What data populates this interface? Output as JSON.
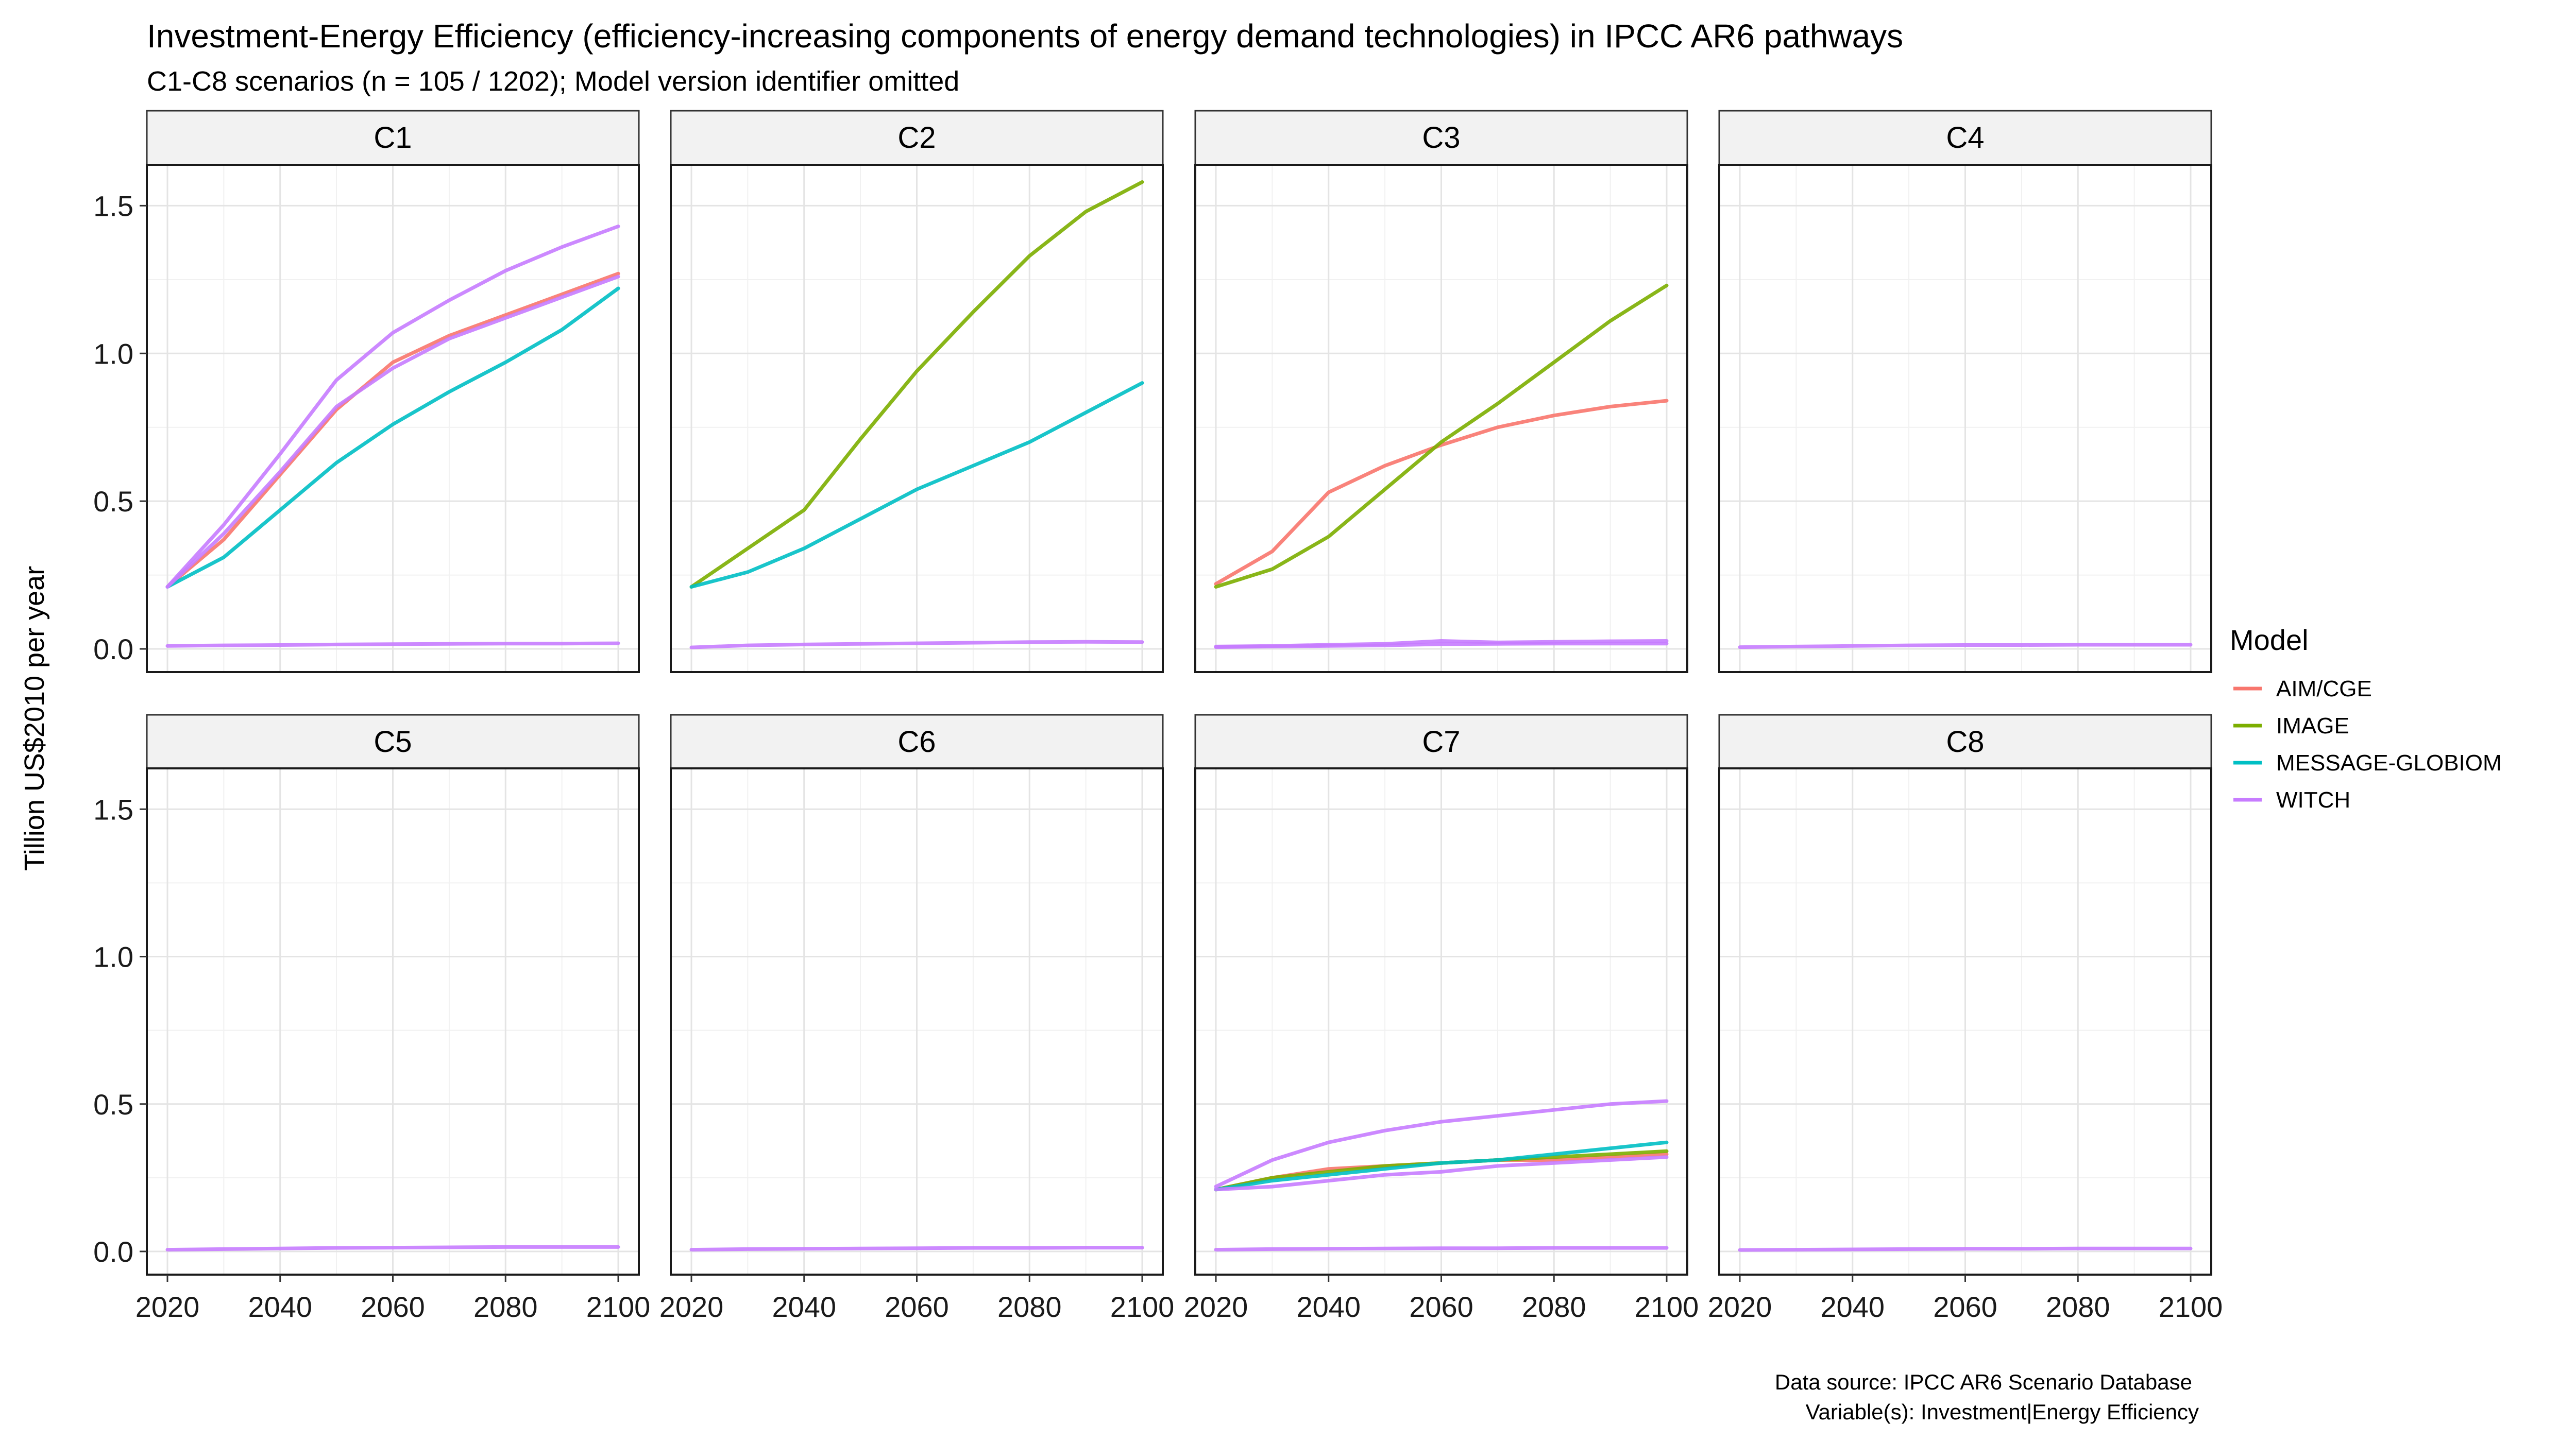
{
  "header": {
    "title": "Investment-Energy Efficiency (efficiency-increasing components of energy demand technologies) in IPCC AR6 pathways",
    "subtitle": "C1-C8 scenarios (n = 105 / 1202); Model version identifier omitted"
  },
  "caption": {
    "line1": "Data source: IPCC AR6 Scenario Database",
    "line2": "Variable(s): Investment|Energy Efficiency"
  },
  "colors": {
    "AIM/CGE": "#F8766D",
    "IMAGE": "#7CAE00",
    "MESSAGE-GLOBIOM": "#00BFC4",
    "WITCH": "#C77CFF"
  },
  "chart_data": {
    "type": "line",
    "ylabel": "Tillion US$2010 per year",
    "xlim": [
      2020,
      2100
    ],
    "ylim": [
      0,
      1.6
    ],
    "x_ticks": [
      "2020",
      "2040",
      "2060",
      "2080",
      "2100"
    ],
    "y_ticks": [
      "0.0",
      "0.5",
      "1.0",
      "1.5"
    ],
    "grid": true,
    "legend": {
      "title": "Model",
      "position": "right",
      "entries": [
        "AIM/CGE",
        "IMAGE",
        "MESSAGE-GLOBIOM",
        "WITCH"
      ]
    },
    "x": [
      2020,
      2030,
      2040,
      2050,
      2060,
      2070,
      2080,
      2090,
      2100
    ],
    "facets": [
      {
        "label": "C1",
        "series": [
          {
            "model": "AIM/CGE",
            "values": [
              0.21,
              0.37,
              0.59,
              0.81,
              0.97,
              1.06,
              1.13,
              1.2,
              1.27
            ]
          },
          {
            "model": "MESSAGE-GLOBIOM",
            "values": [
              0.21,
              0.31,
              0.47,
              0.63,
              0.76,
              0.87,
              0.97,
              1.08,
              1.22
            ]
          },
          {
            "model": "WITCH",
            "values": [
              0.21,
              0.42,
              0.66,
              0.91,
              1.07,
              1.18,
              1.28,
              1.36,
              1.43
            ]
          },
          {
            "model": "WITCH",
            "values": [
              0.21,
              0.39,
              0.6,
              0.82,
              0.95,
              1.05,
              1.12,
              1.19,
              1.26
            ]
          },
          {
            "model": "WITCH",
            "values": [
              0.01,
              0.012,
              0.013,
              0.015,
              0.016,
              0.017,
              0.018,
              0.018,
              0.019
            ]
          }
        ]
      },
      {
        "label": "C2",
        "series": [
          {
            "model": "IMAGE",
            "values": [
              0.21,
              0.34,
              0.47,
              0.71,
              0.94,
              1.14,
              1.33,
              1.48,
              1.58
            ]
          },
          {
            "model": "MESSAGE-GLOBIOM",
            "values": [
              0.21,
              0.26,
              0.34,
              0.44,
              0.54,
              0.62,
              0.7,
              0.8,
              0.9
            ]
          },
          {
            "model": "WITCH",
            "values": [
              0.005,
              0.012,
              0.015,
              0.017,
              0.019,
              0.021,
              0.023,
              0.024,
              0.023
            ]
          }
        ]
      },
      {
        "label": "C3",
        "series": [
          {
            "model": "AIM/CGE",
            "values": [
              0.22,
              0.33,
              0.53,
              0.62,
              0.69,
              0.75,
              0.79,
              0.82,
              0.84
            ]
          },
          {
            "model": "IMAGE",
            "values": [
              0.21,
              0.27,
              0.38,
              0.54,
              0.7,
              0.83,
              0.97,
              1.11,
              1.23
            ]
          },
          {
            "model": "WITCH",
            "values": [
              0.008,
              0.01,
              0.014,
              0.017,
              0.027,
              0.022,
              0.024,
              0.026,
              0.027
            ]
          },
          {
            "model": "WITCH",
            "values": [
              0.006,
              0.008,
              0.01,
              0.012,
              0.016,
              0.017,
              0.018,
              0.018,
              0.018
            ]
          }
        ]
      },
      {
        "label": "C4",
        "series": [
          {
            "model": "WITCH",
            "values": [
              0.006,
              0.008,
              0.01,
              0.012,
              0.013,
              0.013,
              0.014,
              0.014,
              0.014
            ]
          }
        ]
      },
      {
        "label": "C5",
        "series": [
          {
            "model": "WITCH",
            "values": [
              0.006,
              0.008,
              0.01,
              0.012,
              0.013,
              0.014,
              0.015,
              0.015,
              0.015
            ]
          }
        ]
      },
      {
        "label": "C6",
        "series": [
          {
            "model": "WITCH",
            "values": [
              0.006,
              0.008,
              0.009,
              0.01,
              0.011,
              0.012,
              0.012,
              0.013,
              0.013
            ]
          }
        ]
      },
      {
        "label": "C7",
        "series": [
          {
            "model": "AIM/CGE",
            "values": [
              0.21,
              0.25,
              0.28,
              0.29,
              0.3,
              0.31,
              0.31,
              0.32,
              0.33
            ]
          },
          {
            "model": "IMAGE",
            "values": [
              0.21,
              0.25,
              0.27,
              0.29,
              0.3,
              0.31,
              0.32,
              0.33,
              0.34
            ]
          },
          {
            "model": "MESSAGE-GLOBIOM",
            "values": [
              0.21,
              0.24,
              0.26,
              0.28,
              0.3,
              0.31,
              0.33,
              0.35,
              0.37
            ]
          },
          {
            "model": "WITCH",
            "values": [
              0.22,
              0.31,
              0.37,
              0.41,
              0.44,
              0.46,
              0.48,
              0.5,
              0.51
            ]
          },
          {
            "model": "WITCH",
            "values": [
              0.21,
              0.22,
              0.24,
              0.26,
              0.27,
              0.29,
              0.3,
              0.31,
              0.32
            ]
          },
          {
            "model": "WITCH",
            "values": [
              0.006,
              0.008,
              0.009,
              0.01,
              0.011,
              0.011,
              0.012,
              0.012,
              0.012
            ]
          }
        ]
      },
      {
        "label": "C8",
        "series": [
          {
            "model": "WITCH",
            "values": [
              0.005,
              0.006,
              0.007,
              0.008,
              0.009,
              0.009,
              0.01,
              0.01,
              0.01
            ]
          }
        ]
      }
    ]
  }
}
